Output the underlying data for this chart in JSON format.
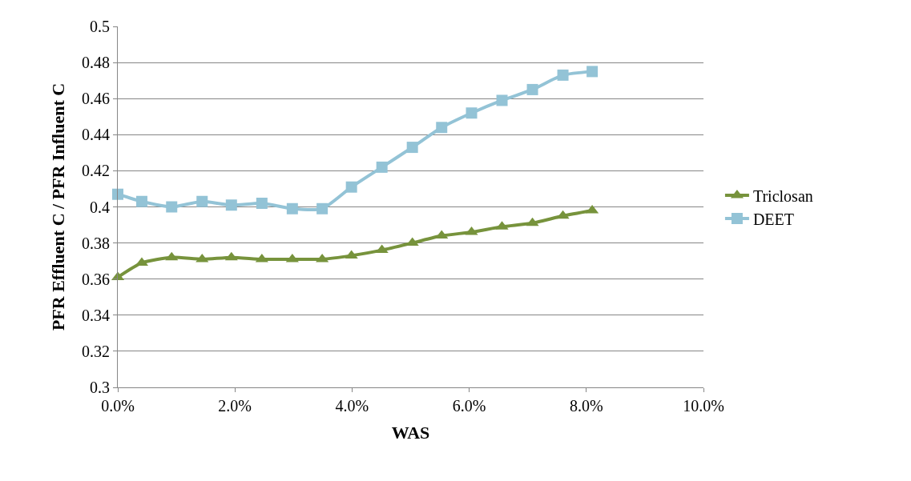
{
  "chart_data": {
    "type": "line",
    "xlabel": "WAS",
    "ylabel": "PFR Effluent C / PFR Influent C",
    "x": [
      0,
      0.41,
      0.92,
      1.44,
      1.94,
      2.46,
      2.98,
      3.49,
      3.99,
      4.51,
      5.03,
      5.53,
      6.04,
      6.56,
      7.08,
      7.6,
      8.1
    ],
    "series": [
      {
        "name": "Triclosan",
        "color": "#77933c",
        "marker": "triangle",
        "values": [
          0.361,
          0.369,
          0.372,
          0.371,
          0.372,
          0.371,
          0.371,
          0.371,
          0.373,
          0.376,
          0.38,
          0.384,
          0.386,
          0.389,
          0.391,
          0.395,
          0.398
        ]
      },
      {
        "name": "DEET",
        "color": "#93c3d6",
        "marker": "square",
        "values": [
          0.407,
          0.403,
          0.4,
          0.403,
          0.401,
          0.402,
          0.399,
          0.399,
          0.411,
          0.422,
          0.433,
          0.444,
          0.452,
          0.459,
          0.465,
          0.473,
          0.475
        ]
      }
    ],
    "xlim": [
      0,
      10
    ],
    "xticks": [
      {
        "value": 0,
        "label": "0.0%"
      },
      {
        "value": 2,
        "label": "2.0%"
      },
      {
        "value": 4,
        "label": "4.0%"
      },
      {
        "value": 6,
        "label": "6.0%"
      },
      {
        "value": 8,
        "label": "8.0%"
      },
      {
        "value": 10,
        "label": "10.0%"
      }
    ],
    "ylim": [
      0.3,
      0.5
    ],
    "yticks": [
      0.3,
      0.32,
      0.34,
      0.36,
      0.38,
      0.4,
      0.42,
      0.44,
      0.46,
      0.48,
      0.5
    ],
    "grid": "y",
    "legend": "right",
    "line_style": "solid"
  }
}
